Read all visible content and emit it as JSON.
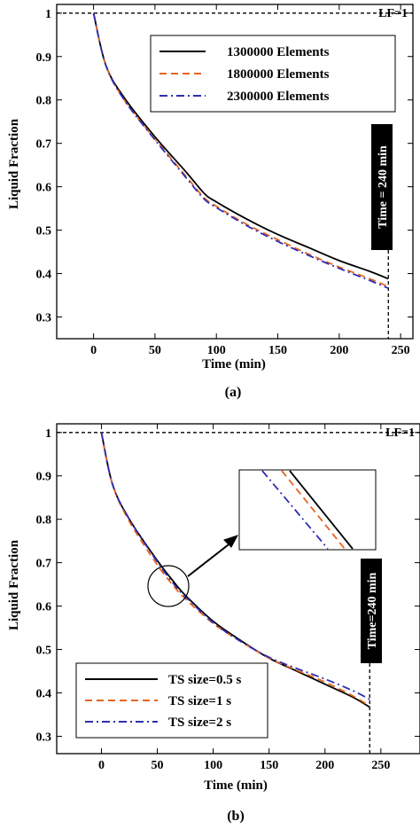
{
  "chart_data": [
    {
      "type": "line",
      "caption": "(a)",
      "xlabel": "Time (min)",
      "ylabel": "Liquid Fraction",
      "xlim": [
        -30,
        260
      ],
      "ylim": [
        0.25,
        1.02
      ],
      "xticks": [
        0,
        50,
        100,
        150,
        200,
        250
      ],
      "yticks": [
        0.3,
        0.4,
        0.5,
        0.6,
        0.7,
        0.8,
        0.9,
        1
      ],
      "reference_line": {
        "label": "LF=1",
        "y": 1
      },
      "vertical_marker": {
        "label": "Time = 240 min",
        "x": 240
      },
      "grid": false,
      "legend_position": "top-right",
      "x": [
        0,
        10,
        25,
        50,
        75,
        90,
        100,
        125,
        150,
        175,
        200,
        225,
        240
      ],
      "series": [
        {
          "name": "1300000 Elements",
          "color": "#000000",
          "dash": "solid",
          "values": [
            1.0,
            0.88,
            0.805,
            0.715,
            0.635,
            0.585,
            0.565,
            0.525,
            0.49,
            0.46,
            0.43,
            0.405,
            0.388
          ]
        },
        {
          "name": "1800000 Elements",
          "color": "#e8641e",
          "dash": "dashed",
          "values": [
            1.0,
            0.88,
            0.8,
            0.71,
            0.625,
            0.575,
            0.555,
            0.513,
            0.478,
            0.445,
            0.415,
            0.388,
            0.37
          ]
        },
        {
          "name": "2300000 Elements",
          "color": "#2d2db4",
          "dash": "dashdot",
          "values": [
            1.0,
            0.88,
            0.8,
            0.708,
            0.622,
            0.572,
            0.552,
            0.51,
            0.474,
            0.442,
            0.412,
            0.384,
            0.366
          ]
        }
      ]
    },
    {
      "type": "line",
      "caption": "(b)",
      "xlabel": "Time (min)",
      "ylabel": "Liquid Fraction",
      "xlim": [
        -40,
        285
      ],
      "ylim": [
        0.26,
        1.02
      ],
      "xticks": [
        0,
        50,
        100,
        150,
        200,
        250
      ],
      "yticks": [
        0.3,
        0.4,
        0.5,
        0.6,
        0.7,
        0.8,
        0.9,
        1
      ],
      "reference_line": {
        "label": "LF=1",
        "y": 1
      },
      "vertical_marker": {
        "label": "Time=240 min",
        "x": 240
      },
      "grid": false,
      "legend_position": "bottom-left",
      "x": [
        0,
        10,
        25,
        50,
        65,
        75,
        100,
        125,
        150,
        175,
        200,
        225,
        240
      ],
      "series": [
        {
          "name": "TS size=0.5 s",
          "color": "#000000",
          "dash": "solid",
          "values": [
            1.0,
            0.88,
            0.8,
            0.705,
            0.655,
            0.625,
            0.565,
            0.52,
            0.48,
            0.45,
            0.42,
            0.39,
            0.367
          ]
        },
        {
          "name": "TS size=1 s",
          "color": "#e8641e",
          "dash": "dashed",
          "values": [
            1.0,
            0.88,
            0.795,
            0.695,
            0.645,
            0.617,
            0.56,
            0.518,
            0.48,
            0.452,
            0.425,
            0.393,
            0.37
          ]
        },
        {
          "name": "TS size=2 s",
          "color": "#2d2db4",
          "dash": "dashdot",
          "values": [
            1.0,
            0.88,
            0.8,
            0.702,
            0.65,
            0.622,
            0.562,
            0.518,
            0.482,
            0.456,
            0.432,
            0.405,
            0.385
          ]
        }
      ]
    }
  ]
}
